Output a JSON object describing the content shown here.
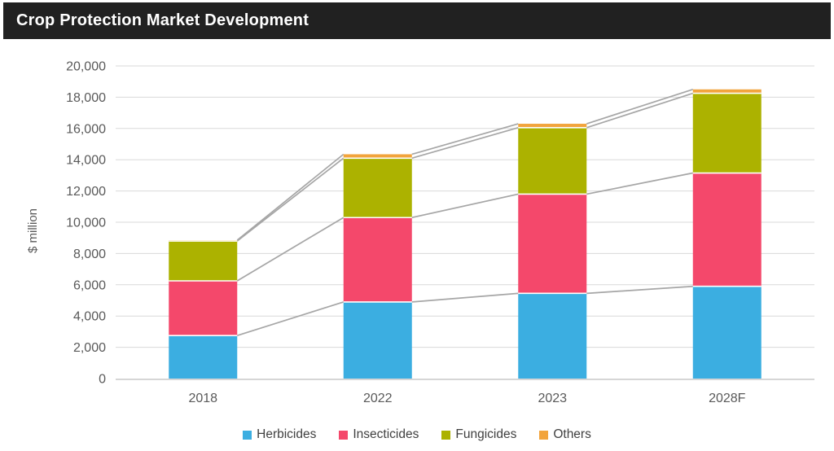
{
  "header": {
    "title": "Crop Protection Market Development"
  },
  "colors": {
    "title_bar_bg": "#212121",
    "title_text": "#FFFFFF",
    "gridline": "#D9D9D9",
    "axis_line": "#D6D6D6",
    "series_line": "#A6A6A6",
    "axis_text": "#595959",
    "legend_text": "#404040",
    "herbicides": "#3BAEE1",
    "insecticides": "#F4486B",
    "fungicides": "#ACB200",
    "others": "#F2A43C"
  },
  "chart_data": {
    "type": "bar",
    "stacked": true,
    "title": "Crop Protection Market Development",
    "xlabel": "",
    "ylabel": "$ million",
    "ylim": [
      0,
      20000
    ],
    "ytick_step": 2000,
    "grid": true,
    "legend_position": "bottom",
    "series_lines": true,
    "categories": [
      "2018",
      "2022",
      "2023",
      "2028F"
    ],
    "series": [
      {
        "name": "Herbicides",
        "color": "#3BAEE1",
        "values": [
          2750,
          4900,
          5450,
          5900
        ]
      },
      {
        "name": "Insecticides",
        "color": "#F4486B",
        "values": [
          3500,
          5400,
          6350,
          7250
        ]
      },
      {
        "name": "Fungicides",
        "color": "#ACB200",
        "values": [
          2550,
          3800,
          4250,
          5100
        ]
      },
      {
        "name": "Others",
        "color": "#F2A43C",
        "values": [
          50,
          250,
          250,
          250
        ]
      }
    ],
    "stack_totals": [
      8850,
      14350,
      16300,
      18500
    ]
  }
}
